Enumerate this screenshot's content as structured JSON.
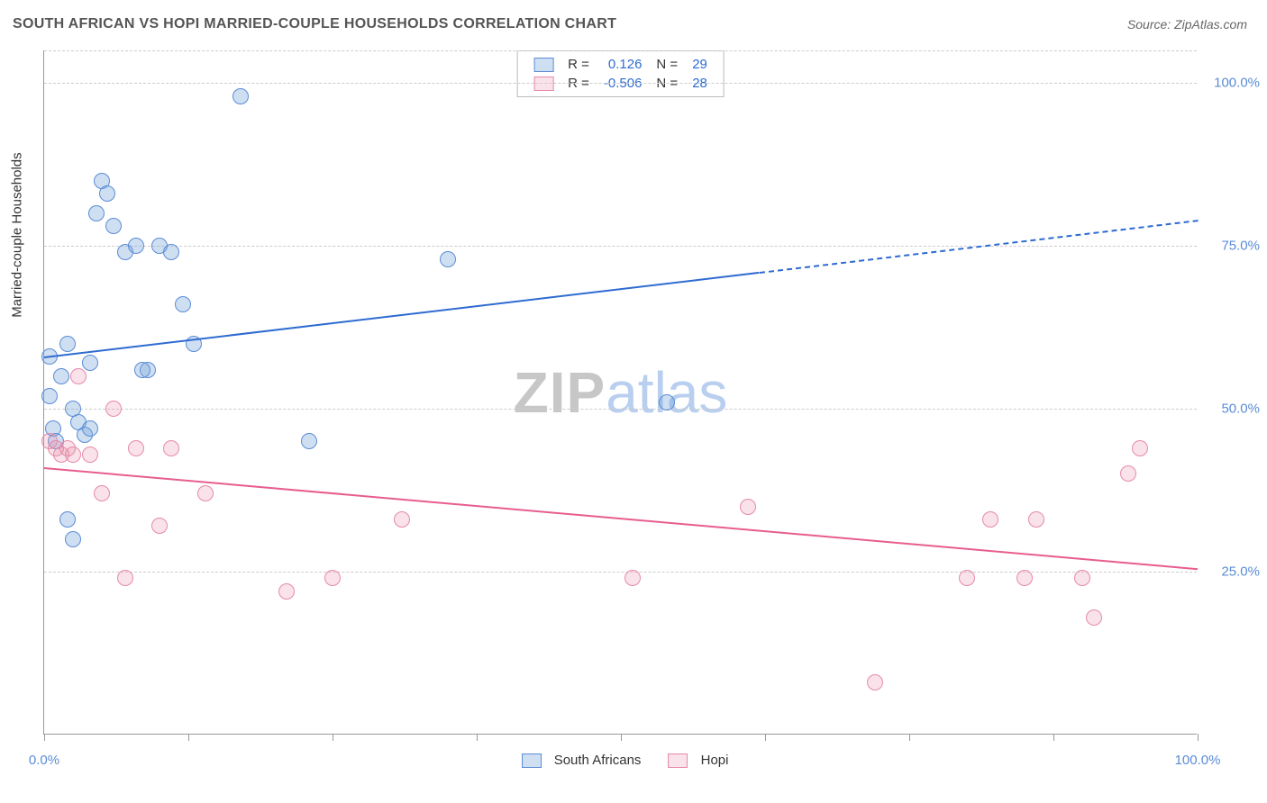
{
  "header": {
    "title": "SOUTH AFRICAN VS HOPI MARRIED-COUPLE HOUSEHOLDS CORRELATION CHART",
    "source": "Source: ZipAtlas.com"
  },
  "chart": {
    "type": "scatter",
    "y_axis_label": "Married-couple Households",
    "xlim": [
      0,
      100
    ],
    "ylim": [
      0,
      105
    ],
    "x_ticks": [
      0,
      12.5,
      25,
      37.5,
      50,
      62.5,
      75,
      87.5,
      100
    ],
    "x_tick_labels": {
      "0": "0.0%",
      "100": "100.0%"
    },
    "y_gridlines": [
      25,
      50,
      75,
      100,
      105
    ],
    "y_tick_labels": {
      "25": "25.0%",
      "50": "50.0%",
      "75": "75.0%",
      "100": "100.0%"
    },
    "background_color": "#ffffff",
    "grid_color": "#cccccc",
    "axis_color": "#999999",
    "tick_label_color": "#5a8cd6",
    "watermark": {
      "part1": "ZIP",
      "part2": "atlas",
      "color1": "#c7c7c7",
      "color2": "#b9cfef"
    },
    "series": [
      {
        "name": "South Africans",
        "color_fill": "rgba(117,163,219,0.35)",
        "color_stroke": "#5a8cd6",
        "marker_radius": 9,
        "R": "0.126",
        "N": "29",
        "trend": {
          "x1": 0,
          "y1": 58,
          "x2_solid": 62,
          "y2_solid": 71,
          "x2_dash": 100,
          "y2_dash": 79,
          "color": "#2e6bd1"
        },
        "points": [
          {
            "x": 0.5,
            "y": 58
          },
          {
            "x": 0.5,
            "y": 52
          },
          {
            "x": 0.8,
            "y": 47
          },
          {
            "x": 1.0,
            "y": 45
          },
          {
            "x": 1.5,
            "y": 55
          },
          {
            "x": 2.0,
            "y": 60
          },
          {
            "x": 2.5,
            "y": 50
          },
          {
            "x": 3.0,
            "y": 48
          },
          {
            "x": 3.5,
            "y": 46
          },
          {
            "x": 4.0,
            "y": 57
          },
          {
            "x": 4.5,
            "y": 80
          },
          {
            "x": 5.0,
            "y": 85
          },
          {
            "x": 5.5,
            "y": 83
          },
          {
            "x": 6.0,
            "y": 78
          },
          {
            "x": 7.0,
            "y": 74
          },
          {
            "x": 8.0,
            "y": 75
          },
          {
            "x": 9.0,
            "y": 56
          },
          {
            "x": 10.0,
            "y": 75
          },
          {
            "x": 11.0,
            "y": 74
          },
          {
            "x": 12.0,
            "y": 66
          },
          {
            "x": 13.0,
            "y": 60
          },
          {
            "x": 2.0,
            "y": 33
          },
          {
            "x": 2.5,
            "y": 30
          },
          {
            "x": 4.0,
            "y": 47
          },
          {
            "x": 8.5,
            "y": 56
          },
          {
            "x": 17.0,
            "y": 98
          },
          {
            "x": 23.0,
            "y": 45
          },
          {
            "x": 35.0,
            "y": 73
          },
          {
            "x": 54.0,
            "y": 51
          }
        ]
      },
      {
        "name": "Hopi",
        "color_fill": "rgba(232,140,168,0.25)",
        "color_stroke": "#e68aa8",
        "marker_radius": 9,
        "R": "-0.506",
        "N": "28",
        "trend": {
          "x1": 0,
          "y1": 41,
          "x2_solid": 100,
          "y2_solid": 25.5,
          "color": "#e75d8f"
        },
        "points": [
          {
            "x": 0.5,
            "y": 45
          },
          {
            "x": 1.0,
            "y": 44
          },
          {
            "x": 1.5,
            "y": 43
          },
          {
            "x": 2.0,
            "y": 44
          },
          {
            "x": 2.5,
            "y": 43
          },
          {
            "x": 3.0,
            "y": 55
          },
          {
            "x": 4.0,
            "y": 43
          },
          {
            "x": 5.0,
            "y": 37
          },
          {
            "x": 6.0,
            "y": 50
          },
          {
            "x": 7.0,
            "y": 24
          },
          {
            "x": 8.0,
            "y": 44
          },
          {
            "x": 10.0,
            "y": 32
          },
          {
            "x": 11.0,
            "y": 44
          },
          {
            "x": 14.0,
            "y": 37
          },
          {
            "x": 21.0,
            "y": 22
          },
          {
            "x": 25.0,
            "y": 24
          },
          {
            "x": 31.0,
            "y": 33
          },
          {
            "x": 51.0,
            "y": 24
          },
          {
            "x": 61.0,
            "y": 35
          },
          {
            "x": 72.0,
            "y": 8
          },
          {
            "x": 80.0,
            "y": 24
          },
          {
            "x": 82.0,
            "y": 33
          },
          {
            "x": 85.0,
            "y": 24
          },
          {
            "x": 86.0,
            "y": 33
          },
          {
            "x": 90.0,
            "y": 24
          },
          {
            "x": 91.0,
            "y": 18
          },
          {
            "x": 94.0,
            "y": 40
          },
          {
            "x": 95.0,
            "y": 44
          }
        ]
      }
    ],
    "legend_bottom": [
      {
        "label": "South Africans",
        "fill": "rgba(117,163,219,0.35)",
        "stroke": "#5a8cd6"
      },
      {
        "label": "Hopi",
        "fill": "rgba(232,140,168,0.25)",
        "stroke": "#e68aa8"
      }
    ],
    "legend_top_text_color": "#333333",
    "legend_top_value_color": "#2e6bd1"
  }
}
